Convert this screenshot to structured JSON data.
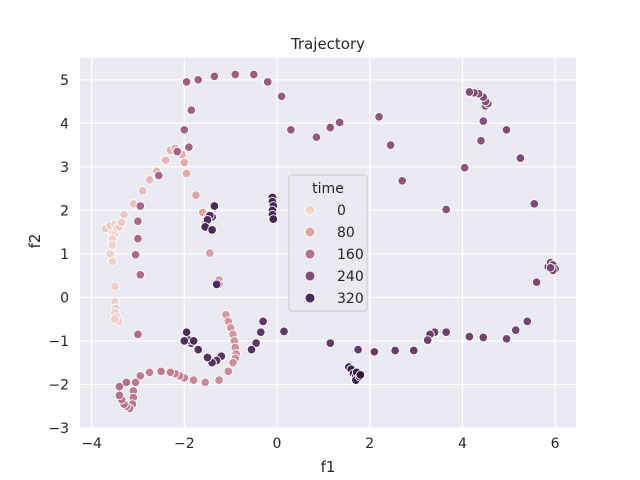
{
  "chart_data": {
    "type": "scatter",
    "title": "Trajectory",
    "xlabel": "f1",
    "ylabel": "f2",
    "xlim": [
      -4.25,
      6.45
    ],
    "ylim": [
      -3.0,
      5.5
    ],
    "xticks": [
      -4,
      -2,
      0,
      2,
      4,
      6
    ],
    "yticks": [
      -3,
      -2,
      -1,
      0,
      1,
      2,
      3,
      4,
      5
    ],
    "grid": true,
    "background": "#eaeaf2",
    "hue": {
      "name": "time",
      "min": 0,
      "max": 360,
      "legend_values": [
        0,
        80,
        160,
        240,
        320
      ],
      "colors": [
        "#f0d5cd",
        "#dca5a3",
        "#b8718b",
        "#824c79",
        "#4a2a5c"
      ],
      "end_color": "#2b1638"
    },
    "legend_position": "center",
    "points": [
      {
        "x": -3.6,
        "y": 1.55,
        "t": 0
      },
      {
        "x": -3.65,
        "y": 1.6,
        "t": 1
      },
      {
        "x": -3.55,
        "y": 1.5,
        "t": 2
      },
      {
        "x": -3.5,
        "y": 1.45,
        "t": 3
      },
      {
        "x": -3.55,
        "y": 1.35,
        "t": 4
      },
      {
        "x": -3.55,
        "y": 1.2,
        "t": 5
      },
      {
        "x": -3.6,
        "y": 1.0,
        "t": 6
      },
      {
        "x": -3.55,
        "y": 0.82,
        "t": 7
      },
      {
        "x": -3.5,
        "y": 0.25,
        "t": 8
      },
      {
        "x": -3.5,
        "y": -0.1,
        "t": 9
      },
      {
        "x": -3.48,
        "y": -0.25,
        "t": 10
      },
      {
        "x": -3.5,
        "y": -0.35,
        "t": 11
      },
      {
        "x": -3.45,
        "y": -0.45,
        "t": 12
      },
      {
        "x": -3.42,
        "y": -0.55,
        "t": 13
      },
      {
        "x": -3.5,
        "y": -0.5,
        "t": 14
      },
      {
        "x": -3.7,
        "y": 1.58,
        "t": 15
      },
      {
        "x": -3.6,
        "y": 1.65,
        "t": 16
      },
      {
        "x": -3.5,
        "y": 1.68,
        "t": 17
      },
      {
        "x": -3.45,
        "y": 1.6,
        "t": 18
      },
      {
        "x": -3.4,
        "y": 1.62,
        "t": 19
      },
      {
        "x": -3.35,
        "y": 1.72,
        "t": 20
      },
      {
        "x": -3.3,
        "y": 1.9,
        "t": 24
      },
      {
        "x": -3.1,
        "y": 2.15,
        "t": 30
      },
      {
        "x": -2.9,
        "y": 2.45,
        "t": 36
      },
      {
        "x": -2.75,
        "y": 2.7,
        "t": 42
      },
      {
        "x": -2.6,
        "y": 2.9,
        "t": 48
      },
      {
        "x": -2.4,
        "y": 3.15,
        "t": 52
      },
      {
        "x": -2.3,
        "y": 3.38,
        "t": 56
      },
      {
        "x": -2.2,
        "y": 3.42,
        "t": 58
      },
      {
        "x": -2.05,
        "y": 3.28,
        "t": 62
      },
      {
        "x": -2.0,
        "y": 3.1,
        "t": 66
      },
      {
        "x": -1.95,
        "y": 2.85,
        "t": 70
      },
      {
        "x": -1.75,
        "y": 2.35,
        "t": 76
      },
      {
        "x": -1.6,
        "y": 1.95,
        "t": 80
      },
      {
        "x": -1.5,
        "y": 1.85,
        "t": 82
      },
      {
        "x": -1.55,
        "y": 1.7,
        "t": 84
      },
      {
        "x": -1.45,
        "y": 1.02,
        "t": 88
      },
      {
        "x": -1.25,
        "y": 0.4,
        "t": 92
      },
      {
        "x": -1.25,
        "y": 0.3,
        "t": 94
      },
      {
        "x": -1.1,
        "y": -0.4,
        "t": 98
      },
      {
        "x": -1.05,
        "y": -0.55,
        "t": 100
      },
      {
        "x": -1.0,
        "y": -0.7,
        "t": 102
      },
      {
        "x": -0.95,
        "y": -0.85,
        "t": 104
      },
      {
        "x": -0.92,
        "y": -1.0,
        "t": 106
      },
      {
        "x": -0.9,
        "y": -1.15,
        "t": 108
      },
      {
        "x": -0.88,
        "y": -1.3,
        "t": 110
      },
      {
        "x": -0.9,
        "y": -1.4,
        "t": 112
      },
      {
        "x": -0.95,
        "y": -1.5,
        "t": 114
      },
      {
        "x": -1.05,
        "y": -1.7,
        "t": 118
      },
      {
        "x": -1.25,
        "y": -1.9,
        "t": 120
      },
      {
        "x": -1.55,
        "y": -1.95,
        "t": 124
      },
      {
        "x": -1.8,
        "y": -1.9,
        "t": 128
      },
      {
        "x": -2.0,
        "y": -1.85,
        "t": 132
      },
      {
        "x": -2.1,
        "y": -1.8,
        "t": 134
      },
      {
        "x": -2.2,
        "y": -1.75,
        "t": 136
      },
      {
        "x": -2.3,
        "y": -1.72,
        "t": 138
      },
      {
        "x": -2.5,
        "y": -1.7,
        "t": 140
      },
      {
        "x": -2.75,
        "y": -1.72,
        "t": 142
      },
      {
        "x": -2.95,
        "y": -1.8,
        "t": 144
      },
      {
        "x": -3.05,
        "y": -1.95,
        "t": 146
      },
      {
        "x": -3.1,
        "y": -2.15,
        "t": 148
      },
      {
        "x": -3.1,
        "y": -2.3,
        "t": 150
      },
      {
        "x": -3.12,
        "y": -2.45,
        "t": 152
      },
      {
        "x": -3.18,
        "y": -2.55,
        "t": 154
      },
      {
        "x": -3.25,
        "y": -2.5,
        "t": 156
      },
      {
        "x": -3.3,
        "y": -2.45,
        "t": 158
      },
      {
        "x": -3.35,
        "y": -2.35,
        "t": 160
      },
      {
        "x": -3.4,
        "y": -2.25,
        "t": 162
      },
      {
        "x": -3.4,
        "y": -2.05,
        "t": 164
      },
      {
        "x": -3.25,
        "y": -1.95,
        "t": 166
      },
      {
        "x": -3.0,
        "y": -0.85,
        "t": 170
      },
      {
        "x": -2.95,
        "y": 0.52,
        "t": 174
      },
      {
        "x": -3.05,
        "y": 0.98,
        "t": 176
      },
      {
        "x": -3.0,
        "y": 1.35,
        "t": 178
      },
      {
        "x": -3.0,
        "y": 1.75,
        "t": 180
      },
      {
        "x": -2.95,
        "y": 2.1,
        "t": 182
      },
      {
        "x": -2.55,
        "y": 2.8,
        "t": 186
      },
      {
        "x": -2.15,
        "y": 3.35,
        "t": 188
      },
      {
        "x": -1.9,
        "y": 3.45,
        "t": 190
      },
      {
        "x": -2.0,
        "y": 3.85,
        "t": 192
      },
      {
        "x": -1.85,
        "y": 4.3,
        "t": 194
      },
      {
        "x": -1.95,
        "y": 4.95,
        "t": 196
      },
      {
        "x": -1.7,
        "y": 5.0,
        "t": 198
      },
      {
        "x": -1.35,
        "y": 5.08,
        "t": 200
      },
      {
        "x": -0.9,
        "y": 5.12,
        "t": 202
      },
      {
        "x": -0.5,
        "y": 5.12,
        "t": 204
      },
      {
        "x": -0.2,
        "y": 4.95,
        "t": 206
      },
      {
        "x": 0.1,
        "y": 4.62,
        "t": 208
      },
      {
        "x": 0.3,
        "y": 3.85,
        "t": 210
      },
      {
        "x": 0.85,
        "y": 3.68,
        "t": 212
      },
      {
        "x": 1.15,
        "y": 3.9,
        "t": 214
      },
      {
        "x": 1.35,
        "y": 4.02,
        "t": 216
      },
      {
        "x": 2.2,
        "y": 4.15,
        "t": 218
      },
      {
        "x": 2.45,
        "y": 3.5,
        "t": 220
      },
      {
        "x": 2.7,
        "y": 2.68,
        "t": 222
      },
      {
        "x": 3.65,
        "y": 2.02,
        "t": 226
      },
      {
        "x": 4.05,
        "y": 2.98,
        "t": 228
      },
      {
        "x": 4.4,
        "y": 3.6,
        "t": 230
      },
      {
        "x": 4.45,
        "y": 4.05,
        "t": 232
      },
      {
        "x": 4.5,
        "y": 4.4,
        "t": 234
      },
      {
        "x": 4.55,
        "y": 4.45,
        "t": 235
      },
      {
        "x": 4.5,
        "y": 4.5,
        "t": 236
      },
      {
        "x": 4.45,
        "y": 4.6,
        "t": 237
      },
      {
        "x": 4.35,
        "y": 4.68,
        "t": 238
      },
      {
        "x": 4.25,
        "y": 4.7,
        "t": 239
      },
      {
        "x": 4.15,
        "y": 4.72,
        "t": 240
      },
      {
        "x": 4.95,
        "y": 3.85,
        "t": 242
      },
      {
        "x": 5.25,
        "y": 3.2,
        "t": 244
      },
      {
        "x": 5.55,
        "y": 2.15,
        "t": 246
      },
      {
        "x": 5.6,
        "y": 0.35,
        "t": 248
      },
      {
        "x": 5.85,
        "y": 0.7,
        "t": 250
      },
      {
        "x": 5.9,
        "y": 0.8,
        "t": 251
      },
      {
        "x": 5.95,
        "y": 0.75,
        "t": 252
      },
      {
        "x": 6.0,
        "y": 0.65,
        "t": 253
      },
      {
        "x": 5.95,
        "y": 0.62,
        "t": 254
      },
      {
        "x": 5.9,
        "y": 0.68,
        "t": 255
      },
      {
        "x": 5.4,
        "y": -0.55,
        "t": 258
      },
      {
        "x": 5.15,
        "y": -0.75,
        "t": 260
      },
      {
        "x": 4.95,
        "y": -0.95,
        "t": 262
      },
      {
        "x": 4.45,
        "y": -0.92,
        "t": 264
      },
      {
        "x": 4.15,
        "y": -0.9,
        "t": 266
      },
      {
        "x": 3.65,
        "y": -0.8,
        "t": 268
      },
      {
        "x": 3.4,
        "y": -0.8,
        "t": 270
      },
      {
        "x": 3.3,
        "y": -0.85,
        "t": 272
      },
      {
        "x": 3.25,
        "y": -0.98,
        "t": 274
      },
      {
        "x": 2.95,
        "y": -1.22,
        "t": 276
      },
      {
        "x": 2.55,
        "y": -1.22,
        "t": 278
      },
      {
        "x": 2.1,
        "y": -1.25,
        "t": 280
      },
      {
        "x": 1.75,
        "y": -1.2,
        "t": 282
      },
      {
        "x": 1.15,
        "y": -1.05,
        "t": 284
      },
      {
        "x": 0.15,
        "y": -0.78,
        "t": 288
      },
      {
        "x": -0.3,
        "y": -0.55,
        "t": 290
      },
      {
        "x": -0.35,
        "y": -0.8,
        "t": 292
      },
      {
        "x": -0.45,
        "y": -1.05,
        "t": 294
      },
      {
        "x": -0.55,
        "y": -1.2,
        "t": 296
      },
      {
        "x": -1.2,
        "y": -1.35,
        "t": 298
      },
      {
        "x": -1.3,
        "y": -1.45,
        "t": 300
      },
      {
        "x": -1.4,
        "y": -1.5,
        "t": 302
      },
      {
        "x": -1.5,
        "y": -1.38,
        "t": 304
      },
      {
        "x": -1.7,
        "y": -1.2,
        "t": 306
      },
      {
        "x": -1.85,
        "y": -1.05,
        "t": 308
      },
      {
        "x": -1.9,
        "y": -0.98,
        "t": 310
      },
      {
        "x": -2.0,
        "y": -1.0,
        "t": 311
      },
      {
        "x": -1.95,
        "y": -0.8,
        "t": 312
      },
      {
        "x": -1.8,
        "y": -1.0,
        "t": 313
      },
      {
        "x": -1.4,
        "y": 1.85,
        "t": 316
      },
      {
        "x": -1.45,
        "y": 1.88,
        "t": 317
      },
      {
        "x": -1.5,
        "y": 1.78,
        "t": 318
      },
      {
        "x": -1.55,
        "y": 1.62,
        "t": 319
      },
      {
        "x": -1.35,
        "y": 2.1,
        "t": 320
      },
      {
        "x": -1.4,
        "y": 1.55,
        "t": 321
      },
      {
        "x": -1.3,
        "y": 0.3,
        "t": 322
      },
      {
        "x": -0.1,
        "y": 2.3,
        "t": 324
      },
      {
        "x": -0.1,
        "y": 2.2,
        "t": 325
      },
      {
        "x": -0.08,
        "y": 2.1,
        "t": 326
      },
      {
        "x": -0.1,
        "y": 2.0,
        "t": 327
      },
      {
        "x": -0.1,
        "y": 1.9,
        "t": 328
      },
      {
        "x": -0.08,
        "y": 1.8,
        "t": 329
      },
      {
        "x": 1.55,
        "y": -1.6,
        "t": 334
      },
      {
        "x": 1.6,
        "y": -1.65,
        "t": 336
      },
      {
        "x": 1.65,
        "y": -1.75,
        "t": 338
      },
      {
        "x": 1.7,
        "y": -1.8,
        "t": 340
      },
      {
        "x": 1.75,
        "y": -1.85,
        "t": 342
      },
      {
        "x": 1.8,
        "y": -1.78,
        "t": 344
      },
      {
        "x": 1.72,
        "y": -1.72,
        "t": 346
      },
      {
        "x": 1.7,
        "y": -1.9,
        "t": 348
      },
      {
        "x": 1.78,
        "y": -1.82,
        "t": 352
      },
      {
        "x": 1.8,
        "y": -1.78,
        "t": 356
      }
    ]
  }
}
